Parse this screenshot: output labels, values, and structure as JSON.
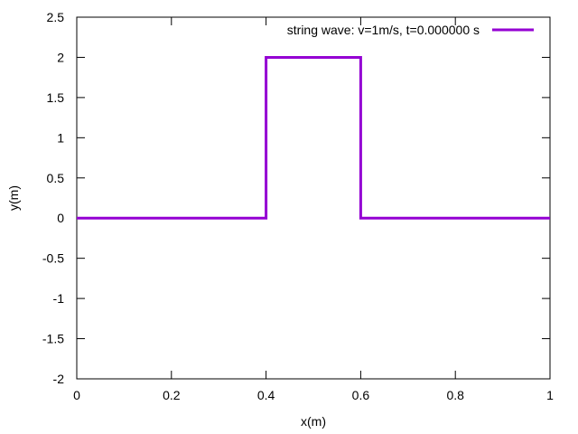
{
  "chart_data": {
    "type": "line",
    "title": "",
    "xlabel": "x(m)",
    "ylabel": "y(m)",
    "xlim": [
      0,
      1
    ],
    "ylim": [
      -2,
      2.5
    ],
    "xticks": [
      0,
      0.2,
      0.4,
      0.6,
      0.8,
      1
    ],
    "xtick_labels": [
      "0",
      "0.2",
      "0.4",
      "0.6",
      "0.8",
      "1"
    ],
    "yticks": [
      -2,
      -1.5,
      -1,
      -0.5,
      0,
      0.5,
      1,
      1.5,
      2,
      2.5
    ],
    "ytick_labels": [
      "-2",
      "-1.5",
      "-1",
      "-0.5",
      "0",
      "0.5",
      "1",
      "1.5",
      "2",
      "2.5"
    ],
    "grid": false,
    "legend_position": "top-right",
    "series": [
      {
        "name": "string wave: v=1m/s, t=0.000000 s",
        "color": "#9400d3",
        "x": [
          0,
          0.4,
          0.4,
          0.6,
          0.6,
          1
        ],
        "y": [
          0,
          0,
          2,
          2,
          0,
          0
        ]
      }
    ]
  }
}
